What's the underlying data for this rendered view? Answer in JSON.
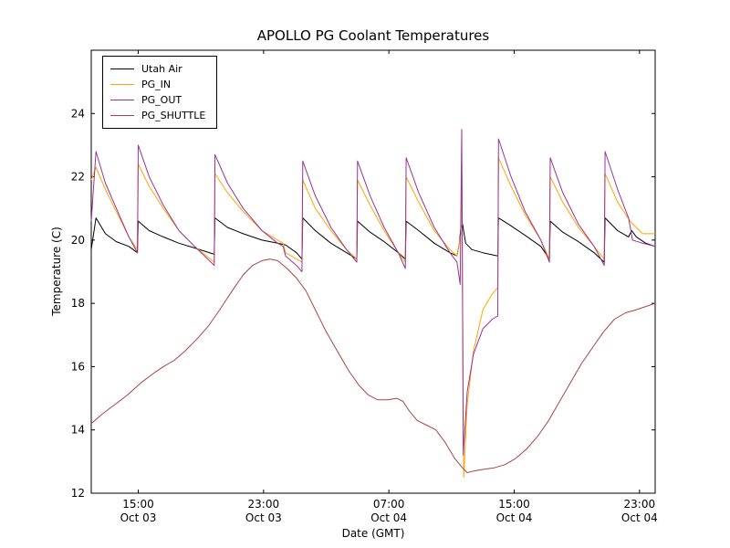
{
  "chart_data": {
    "type": "line",
    "title": "APOLLO PG Coolant Temperatures",
    "xlabel": "Date (GMT)",
    "ylabel": "Temperature (C)",
    "x_axis_note": "x values are hours; 0 corresponds to left edge of plot (midday Oct 03), ticks every 8 hours",
    "xlim": [
      0,
      36
    ],
    "ylim": [
      12,
      26
    ],
    "y_ticks": [
      12,
      14,
      16,
      18,
      20,
      22,
      24
    ],
    "x_ticks": [
      {
        "pos": 3,
        "time": "15:00",
        "date": "Oct 03"
      },
      {
        "pos": 11,
        "time": "23:00",
        "date": "Oct 03"
      },
      {
        "pos": 19,
        "time": "07:00",
        "date": "Oct 04"
      },
      {
        "pos": 27,
        "time": "15:00",
        "date": "Oct 04"
      },
      {
        "pos": 35,
        "time": "23:00",
        "date": "Oct 04"
      }
    ],
    "grid": false,
    "legend_position": "upper left",
    "series": [
      {
        "name": "Utah Air",
        "color": "#000000",
        "points": [
          [
            0,
            19.7
          ],
          [
            0.3,
            20.7
          ],
          [
            0.9,
            20.2
          ],
          [
            1.6,
            19.95
          ],
          [
            2.4,
            19.8
          ],
          [
            2.95,
            19.6
          ],
          [
            3,
            20.6
          ],
          [
            3.7,
            20.3
          ],
          [
            4.6,
            20.1
          ],
          [
            5.6,
            19.9
          ],
          [
            6.6,
            19.75
          ],
          [
            7.85,
            19.55
          ],
          [
            7.9,
            20.7
          ],
          [
            8.7,
            20.4
          ],
          [
            9.7,
            20.2
          ],
          [
            10.9,
            20
          ],
          [
            11.9,
            19.9
          ],
          [
            12.4,
            19.85
          ],
          [
            13.1,
            19.6
          ],
          [
            13.45,
            19.4
          ],
          [
            13.5,
            20.7
          ],
          [
            14.3,
            20.3
          ],
          [
            15.3,
            19.9
          ],
          [
            16.3,
            19.6
          ],
          [
            16.95,
            19.4
          ],
          [
            17,
            20.6
          ],
          [
            17.8,
            20.25
          ],
          [
            18.7,
            19.95
          ],
          [
            19.6,
            19.6
          ],
          [
            20.05,
            19.4
          ],
          [
            20.1,
            20.6
          ],
          [
            20.9,
            20.3
          ],
          [
            21.9,
            19.9
          ],
          [
            22.9,
            19.6
          ],
          [
            23.35,
            19.5
          ],
          [
            23.5,
            19.9
          ],
          [
            23.6,
            20.4
          ],
          [
            23.7,
            20.5
          ],
          [
            23.9,
            19.9
          ],
          [
            24.3,
            19.7
          ],
          [
            25,
            19.6
          ],
          [
            25.95,
            19.5
          ],
          [
            26,
            20.7
          ],
          [
            26.8,
            20.45
          ],
          [
            27.7,
            20.15
          ],
          [
            28.7,
            19.8
          ],
          [
            29.25,
            19.4
          ],
          [
            29.3,
            20.6
          ],
          [
            30.1,
            20.25
          ],
          [
            31.1,
            19.95
          ],
          [
            32.1,
            19.6
          ],
          [
            32.75,
            19.3
          ],
          [
            32.8,
            20.7
          ],
          [
            33.6,
            20.3
          ],
          [
            34.3,
            20.1
          ],
          [
            34.5,
            20.3
          ],
          [
            34.8,
            20.1
          ],
          [
            35.4,
            19.9
          ],
          [
            36,
            19.8
          ]
        ]
      },
      {
        "name": "PG_IN",
        "color": "#ffa500",
        "points": [
          [
            0,
            21.9
          ],
          [
            0.3,
            22.3
          ],
          [
            0.9,
            21.6
          ],
          [
            1.6,
            20.9
          ],
          [
            2.4,
            20.1
          ],
          [
            2.95,
            19.7
          ],
          [
            3,
            22.4
          ],
          [
            3.7,
            21.7
          ],
          [
            4.6,
            21
          ],
          [
            5.6,
            20.3
          ],
          [
            6.6,
            19.8
          ],
          [
            7.85,
            19.3
          ],
          [
            7.9,
            22.1
          ],
          [
            8.7,
            21.5
          ],
          [
            9.7,
            20.9
          ],
          [
            10.9,
            20.3
          ],
          [
            11.9,
            20
          ],
          [
            12.25,
            19.9
          ],
          [
            12.4,
            19.6
          ],
          [
            13.1,
            19.4
          ],
          [
            13.45,
            19.3
          ],
          [
            13.5,
            21.9
          ],
          [
            14.3,
            21
          ],
          [
            15.3,
            20.3
          ],
          [
            16.3,
            19.7
          ],
          [
            16.95,
            19.4
          ],
          [
            17,
            21.9
          ],
          [
            17.8,
            21.1
          ],
          [
            18.7,
            20.3
          ],
          [
            19.6,
            19.6
          ],
          [
            20.05,
            19.3
          ],
          [
            20.1,
            22
          ],
          [
            20.9,
            21.2
          ],
          [
            21.9,
            20.3
          ],
          [
            22.9,
            19.7
          ],
          [
            23.35,
            19.5
          ],
          [
            23.5,
            19.9
          ],
          [
            23.6,
            20.2
          ],
          [
            23.65,
            22.4
          ],
          [
            23.78,
            12.5
          ],
          [
            24,
            14.8
          ],
          [
            24.4,
            16.5
          ],
          [
            25,
            17.8
          ],
          [
            25.6,
            18.3
          ],
          [
            25.95,
            18.5
          ],
          [
            26,
            22.6
          ],
          [
            26.8,
            21.7
          ],
          [
            27.7,
            20.8
          ],
          [
            28.7,
            20
          ],
          [
            29.25,
            19.4
          ],
          [
            29.3,
            22
          ],
          [
            30.1,
            21.2
          ],
          [
            31.1,
            20.4
          ],
          [
            32.1,
            19.8
          ],
          [
            32.75,
            19.4
          ],
          [
            32.8,
            22.1
          ],
          [
            33.6,
            21.2
          ],
          [
            34.4,
            20.6
          ],
          [
            35.2,
            20.2
          ],
          [
            36,
            20.2
          ]
        ]
      },
      {
        "name": "PG_OUT",
        "color": "#993399",
        "points": [
          [
            0,
            20.6
          ],
          [
            0.3,
            22.8
          ],
          [
            0.9,
            21.8
          ],
          [
            1.6,
            21
          ],
          [
            2.4,
            20.1
          ],
          [
            2.95,
            19.6
          ],
          [
            3,
            23
          ],
          [
            3.7,
            22
          ],
          [
            4.6,
            21.1
          ],
          [
            5.6,
            20.3
          ],
          [
            6.6,
            19.8
          ],
          [
            7.85,
            19.2
          ],
          [
            7.9,
            22.7
          ],
          [
            8.7,
            21.8
          ],
          [
            9.7,
            21
          ],
          [
            10.9,
            20.3
          ],
          [
            11.9,
            19.9
          ],
          [
            12.25,
            19.8
          ],
          [
            12.4,
            19.5
          ],
          [
            13.1,
            19.2
          ],
          [
            13.45,
            19
          ],
          [
            13.5,
            22.5
          ],
          [
            14.3,
            21.4
          ],
          [
            15.3,
            20.4
          ],
          [
            16.3,
            19.7
          ],
          [
            16.95,
            19.3
          ],
          [
            17,
            22.5
          ],
          [
            17.8,
            21.4
          ],
          [
            18.7,
            20.4
          ],
          [
            19.6,
            19.6
          ],
          [
            20.05,
            19.1
          ],
          [
            20.1,
            22.6
          ],
          [
            20.9,
            21.5
          ],
          [
            21.9,
            20.4
          ],
          [
            22.9,
            19.6
          ],
          [
            23.35,
            19.3
          ],
          [
            23.55,
            18.6
          ],
          [
            23.65,
            23.5
          ],
          [
            23.75,
            13.2
          ],
          [
            24,
            15.2
          ],
          [
            24.4,
            16.4
          ],
          [
            25,
            17.2
          ],
          [
            25.6,
            17.5
          ],
          [
            25.95,
            17.6
          ],
          [
            26,
            23.2
          ],
          [
            26.8,
            22
          ],
          [
            27.7,
            20.9
          ],
          [
            28.7,
            20
          ],
          [
            29.25,
            19.3
          ],
          [
            29.3,
            22.6
          ],
          [
            30.1,
            21.5
          ],
          [
            31.1,
            20.5
          ],
          [
            32.1,
            19.8
          ],
          [
            32.75,
            19.2
          ],
          [
            32.8,
            22.8
          ],
          [
            33.6,
            21.6
          ],
          [
            34.3,
            20.7
          ],
          [
            34.45,
            20.3
          ],
          [
            34.55,
            20
          ],
          [
            35.2,
            19.9
          ],
          [
            36,
            19.8
          ]
        ]
      },
      {
        "name": "PG_SHUTTLE",
        "color": "#aa4444",
        "points": [
          [
            0,
            14.2
          ],
          [
            0.7,
            14.5
          ],
          [
            1.5,
            14.8
          ],
          [
            2.3,
            15.1
          ],
          [
            3.2,
            15.5
          ],
          [
            4,
            15.8
          ],
          [
            4.6,
            16
          ],
          [
            5.3,
            16.2
          ],
          [
            6,
            16.5
          ],
          [
            6.8,
            16.9
          ],
          [
            7.5,
            17.3
          ],
          [
            8.2,
            17.8
          ],
          [
            9,
            18.4
          ],
          [
            9.7,
            18.9
          ],
          [
            10.3,
            19.2
          ],
          [
            10.9,
            19.35
          ],
          [
            11.4,
            19.4
          ],
          [
            11.9,
            19.35
          ],
          [
            12.5,
            19.1
          ],
          [
            13.1,
            18.8
          ],
          [
            13.7,
            18.4
          ],
          [
            14.3,
            17.8
          ],
          [
            15,
            17.1
          ],
          [
            15.7,
            16.5
          ],
          [
            16.4,
            15.9
          ],
          [
            17.1,
            15.4
          ],
          [
            17.7,
            15.1
          ],
          [
            18.3,
            14.95
          ],
          [
            18.9,
            14.95
          ],
          [
            19.5,
            15
          ],
          [
            19.9,
            14.9
          ],
          [
            20.3,
            14.6
          ],
          [
            20.8,
            14.3
          ],
          [
            21.4,
            14.15
          ],
          [
            22,
            14
          ],
          [
            22.6,
            13.6
          ],
          [
            23.2,
            13.1
          ],
          [
            23.7,
            12.8
          ],
          [
            24,
            12.65
          ],
          [
            24.4,
            12.7
          ],
          [
            25,
            12.75
          ],
          [
            25.7,
            12.8
          ],
          [
            26.4,
            12.9
          ],
          [
            27.1,
            13.1
          ],
          [
            27.8,
            13.4
          ],
          [
            28.5,
            13.8
          ],
          [
            29.2,
            14.3
          ],
          [
            29.9,
            14.9
          ],
          [
            30.6,
            15.5
          ],
          [
            31.3,
            16.1
          ],
          [
            32,
            16.6
          ],
          [
            32.7,
            17.1
          ],
          [
            33.4,
            17.5
          ],
          [
            34.1,
            17.7
          ],
          [
            34.8,
            17.8
          ],
          [
            35.4,
            17.9
          ],
          [
            36,
            18
          ]
        ]
      }
    ]
  }
}
